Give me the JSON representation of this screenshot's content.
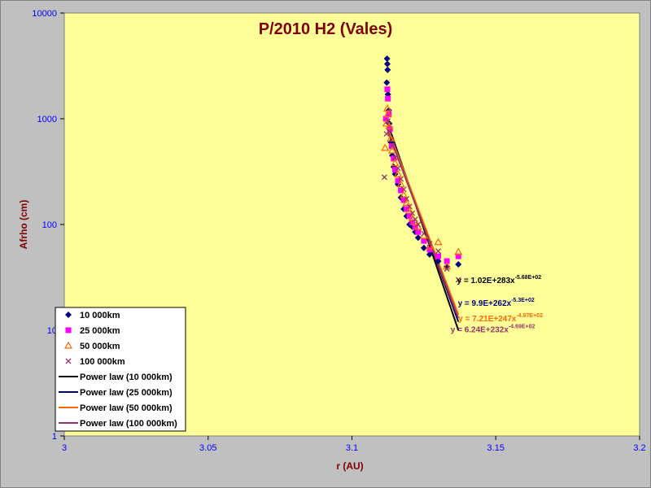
{
  "chart_data": {
    "type": "scatter",
    "title": "P/2010 H2 (Vales)",
    "xlabel": "r (AU)",
    "ylabel": "Afrho (cm)",
    "xlim": [
      3.0,
      3.2
    ],
    "ylim": [
      1,
      10000
    ],
    "ylog": true,
    "x_ticks": [
      "3",
      "3.05",
      "3.1",
      "3.15",
      "3.2"
    ],
    "y_ticks": [
      "1",
      "10",
      "100",
      "1000",
      "10000"
    ],
    "grid": false,
    "legend_position": "bottom-left",
    "colors": {
      "plot_background": "#ffff99",
      "frame_background": "#c0c0c0"
    },
    "series": [
      {
        "name": "10 000km",
        "marker": "diamond",
        "color": "#000080",
        "points": [
          [
            3.1122,
            3700
          ],
          [
            3.1123,
            3300
          ],
          [
            3.1124,
            2900
          ],
          [
            3.1121,
            2200
          ],
          [
            3.1125,
            1700
          ],
          [
            3.1128,
            1200
          ],
          [
            3.113,
            900
          ],
          [
            3.1135,
            600
          ],
          [
            3.114,
            450
          ],
          [
            3.1145,
            350
          ],
          [
            3.115,
            300
          ],
          [
            3.116,
            240
          ],
          [
            3.117,
            180
          ],
          [
            3.118,
            140
          ],
          [
            3.119,
            120
          ],
          [
            3.12,
            100
          ],
          [
            3.121,
            95
          ],
          [
            3.122,
            85
          ],
          [
            3.123,
            75
          ],
          [
            3.125,
            60
          ],
          [
            3.127,
            52
          ],
          [
            3.13,
            45
          ],
          [
            3.133,
            40
          ],
          [
            3.137,
            42
          ]
        ]
      },
      {
        "name": "25 000km",
        "marker": "square",
        "color": "#ff00ff",
        "points": [
          [
            3.1118,
            1000
          ],
          [
            3.1123,
            1900
          ],
          [
            3.1125,
            1550
          ],
          [
            3.1128,
            1100
          ],
          [
            3.1132,
            800
          ],
          [
            3.1138,
            550
          ],
          [
            3.1145,
            420
          ],
          [
            3.115,
            330
          ],
          [
            3.116,
            260
          ],
          [
            3.117,
            210
          ],
          [
            3.118,
            170
          ],
          [
            3.119,
            140
          ],
          [
            3.12,
            120
          ],
          [
            3.121,
            105
          ],
          [
            3.122,
            95
          ],
          [
            3.123,
            85
          ],
          [
            3.125,
            70
          ],
          [
            3.127,
            58
          ],
          [
            3.13,
            50
          ],
          [
            3.133,
            45
          ],
          [
            3.137,
            50
          ]
        ]
      },
      {
        "name": "50 000km",
        "marker": "triangle",
        "color": "#ff6600",
        "points": [
          [
            3.1115,
            530
          ],
          [
            3.112,
            900
          ],
          [
            3.1123,
            1250
          ],
          [
            3.1125,
            1100
          ],
          [
            3.113,
            850
          ],
          [
            3.1135,
            650
          ],
          [
            3.114,
            500
          ],
          [
            3.115,
            380
          ],
          [
            3.116,
            300
          ],
          [
            3.117,
            240
          ],
          [
            3.118,
            190
          ],
          [
            3.119,
            160
          ],
          [
            3.12,
            135
          ],
          [
            3.121,
            115
          ],
          [
            3.122,
            105
          ],
          [
            3.123,
            95
          ],
          [
            3.125,
            78
          ],
          [
            3.127,
            62
          ],
          [
            3.13,
            68
          ],
          [
            3.133,
            40
          ],
          [
            3.137,
            55
          ]
        ]
      },
      {
        "name": "100 000km",
        "marker": "x",
        "color": "#993366",
        "points": [
          [
            3.1113,
            280
          ],
          [
            3.112,
            720
          ],
          [
            3.1125,
            950
          ],
          [
            3.113,
            760
          ],
          [
            3.114,
            560
          ],
          [
            3.115,
            430
          ],
          [
            3.116,
            340
          ],
          [
            3.117,
            270
          ],
          [
            3.118,
            215
          ],
          [
            3.119,
            175
          ],
          [
            3.12,
            148
          ],
          [
            3.121,
            128
          ],
          [
            3.122,
            112
          ],
          [
            3.123,
            100
          ],
          [
            3.125,
            82
          ],
          [
            3.127,
            66
          ],
          [
            3.13,
            56
          ],
          [
            3.133,
            38
          ],
          [
            3.137,
            30
          ]
        ]
      }
    ],
    "fits": [
      {
        "name": "Power law (10 000km)",
        "color": "#000000",
        "line": [
          [
            3.1125,
            900
          ],
          [
            3.137,
            10
          ]
        ],
        "equation": "y = 1.02E+283x",
        "exponent": "-5.68E+02"
      },
      {
        "name": "Power law (25 000km)",
        "color": "#000080",
        "line": [
          [
            3.1125,
            850
          ],
          [
            3.137,
            12
          ]
        ],
        "equation": "y = 9.9E+262x",
        "exponent": "-5.3E+02"
      },
      {
        "name": "Power law (50 000km)",
        "color": "#ff6600",
        "line": [
          [
            3.1125,
            800
          ],
          [
            3.137,
            14
          ]
        ],
        "equation": "y = 7.21E+247x",
        "exponent": "-4.97E+02"
      },
      {
        "name": "Power law (100 000km)",
        "color": "#993366",
        "line": [
          [
            3.1125,
            760
          ],
          [
            3.137,
            13
          ]
        ],
        "equation": "y = 6.24E+232x",
        "exponent": "-4.69E+02"
      }
    ]
  }
}
